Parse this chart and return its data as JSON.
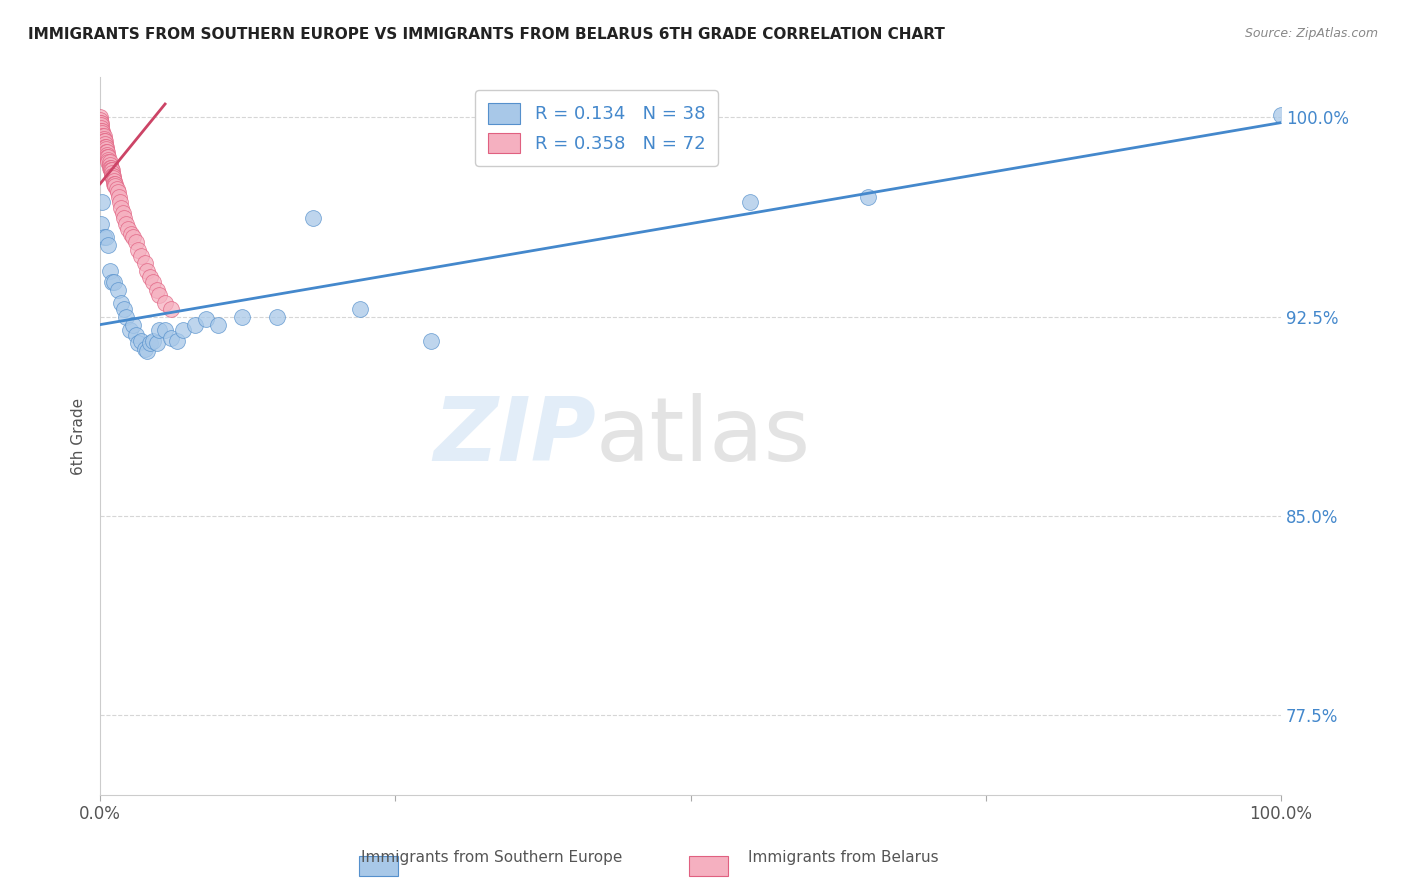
{
  "title": "IMMIGRANTS FROM SOUTHERN EUROPE VS IMMIGRANTS FROM BELARUS 6TH GRADE CORRELATION CHART",
  "source": "Source: ZipAtlas.com",
  "ylabel": "6th Grade",
  "xlim": [
    0,
    1.0
  ],
  "ylim": [
    0.745,
    1.015
  ],
  "yticks": [
    0.775,
    0.85,
    0.925,
    1.0
  ],
  "ytick_labels": [
    "77.5%",
    "85.0%",
    "92.5%",
    "100.0%"
  ],
  "xtick_positions": [
    0.0,
    0.25,
    0.5,
    0.75,
    1.0
  ],
  "xtick_labels": [
    "0.0%",
    "",
    "",
    "",
    "100.0%"
  ],
  "legend_r_blue": "R = 0.134",
  "legend_n_blue": "N = 38",
  "legend_r_pink": "R = 0.358",
  "legend_n_pink": "N = 72",
  "blue_scatter_x": [
    0.001,
    0.002,
    0.003,
    0.005,
    0.007,
    0.008,
    0.01,
    0.012,
    0.015,
    0.018,
    0.02,
    0.022,
    0.025,
    0.028,
    0.03,
    0.032,
    0.035,
    0.038,
    0.04,
    0.042,
    0.045,
    0.048,
    0.05,
    0.055,
    0.06,
    0.065,
    0.07,
    0.08,
    0.09,
    0.1,
    0.12,
    0.15,
    0.18,
    0.22,
    0.28,
    0.55,
    0.65,
    1.0
  ],
  "blue_scatter_y": [
    0.96,
    0.968,
    0.955,
    0.955,
    0.952,
    0.942,
    0.938,
    0.938,
    0.935,
    0.93,
    0.928,
    0.925,
    0.92,
    0.922,
    0.918,
    0.915,
    0.916,
    0.913,
    0.912,
    0.915,
    0.916,
    0.915,
    0.92,
    0.92,
    0.917,
    0.916,
    0.92,
    0.922,
    0.924,
    0.922,
    0.925,
    0.925,
    0.962,
    0.928,
    0.916,
    0.968,
    0.97,
    1.001
  ],
  "pink_scatter_x": [
    0.0,
    0.0,
    0.0,
    0.0,
    0.0,
    0.001,
    0.001,
    0.001,
    0.001,
    0.001,
    0.001,
    0.002,
    0.002,
    0.002,
    0.002,
    0.002,
    0.002,
    0.003,
    0.003,
    0.003,
    0.003,
    0.003,
    0.003,
    0.004,
    0.004,
    0.004,
    0.005,
    0.005,
    0.005,
    0.005,
    0.006,
    0.006,
    0.006,
    0.007,
    0.007,
    0.007,
    0.008,
    0.008,
    0.008,
    0.009,
    0.009,
    0.01,
    0.01,
    0.01,
    0.011,
    0.011,
    0.012,
    0.012,
    0.013,
    0.013,
    0.014,
    0.015,
    0.016,
    0.017,
    0.018,
    0.019,
    0.02,
    0.022,
    0.024,
    0.026,
    0.028,
    0.03,
    0.032,
    0.035,
    0.038,
    0.04,
    0.042,
    0.045,
    0.048,
    0.05,
    0.055,
    0.06
  ],
  "pink_scatter_y": [
    1.0,
    0.999,
    0.998,
    0.997,
    0.996,
    0.998,
    0.997,
    0.996,
    0.995,
    0.994,
    0.993,
    0.995,
    0.994,
    0.993,
    0.992,
    0.991,
    0.99,
    0.993,
    0.992,
    0.991,
    0.99,
    0.989,
    0.988,
    0.991,
    0.99,
    0.989,
    0.989,
    0.988,
    0.987,
    0.986,
    0.987,
    0.986,
    0.985,
    0.985,
    0.984,
    0.983,
    0.983,
    0.982,
    0.981,
    0.981,
    0.98,
    0.98,
    0.979,
    0.978,
    0.978,
    0.977,
    0.976,
    0.975,
    0.975,
    0.974,
    0.973,
    0.972,
    0.97,
    0.968,
    0.966,
    0.964,
    0.962,
    0.96,
    0.958,
    0.956,
    0.955,
    0.953,
    0.95,
    0.948,
    0.945,
    0.942,
    0.94,
    0.938,
    0.935,
    0.933,
    0.93,
    0.928
  ],
  "blue_trendline_x": [
    0.0,
    1.0
  ],
  "blue_trendline_y": [
    0.922,
    0.998
  ],
  "pink_trendline_x": [
    0.0,
    0.055
  ],
  "pink_trendline_y": [
    0.975,
    1.005
  ],
  "blue_color": "#a8c8e8",
  "blue_edge": "#5590cc",
  "pink_color": "#f5b0c0",
  "pink_edge": "#e06080",
  "blue_line_color": "#4488cc",
  "pink_line_color": "#cc4466",
  "watermark_zip": "ZIP",
  "watermark_atlas": "atlas",
  "grid_color": "#cccccc",
  "background": "#ffffff",
  "title_color": "#222222",
  "source_color": "#888888",
  "ytick_color": "#4488cc",
  "xtick_color": "#555555",
  "ylabel_color": "#555555",
  "bottom_label_blue": "Immigrants from Southern Europe",
  "bottom_label_pink": "Immigrants from Belarus"
}
